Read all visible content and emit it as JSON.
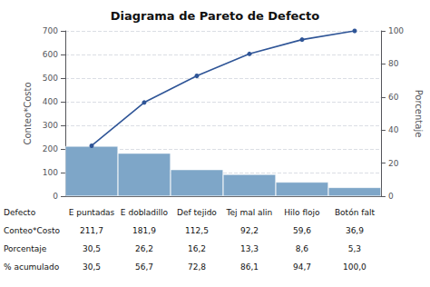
{
  "chart_data": {
    "type": "bar",
    "title": "Diagrama de Pareto de Defecto",
    "categories": [
      "E puntadas",
      "E dobladillo",
      "Def tejido",
      "Tej mal alin",
      "Hilo flojo",
      "Botón falt"
    ],
    "series": [
      {
        "name": "Conteo*Costo",
        "type": "bar",
        "color": "#7EA6C8",
        "values": [
          211.7,
          181.9,
          112.5,
          92.2,
          59.6,
          36.9
        ],
        "value_labels": [
          "211,7",
          "181,9",
          "112,5",
          "92,2",
          "59,6",
          "36,9"
        ]
      },
      {
        "name": "% acumulado",
        "type": "line",
        "axis": "y2",
        "color": "#2F5597",
        "marker": "circle",
        "values": [
          30.5,
          56.7,
          72.8,
          86.1,
          94.7,
          100.0
        ],
        "value_labels": [
          "30,5",
          "56,7",
          "72,8",
          "86,1",
          "94,7",
          "100,0"
        ]
      }
    ],
    "ylabel": "Conteo*Costo",
    "y2label": "Porcentaje",
    "ylim": [
      0,
      700
    ],
    "yticks": [
      0,
      100,
      200,
      300,
      400,
      500,
      600,
      700
    ],
    "y2lim": [
      0,
      100
    ],
    "y2ticks": [
      0,
      20,
      40,
      60,
      80,
      100
    ],
    "grid": true,
    "table": {
      "row_labels": [
        "Defecto",
        "Conteo*Costo",
        "Porcentaje",
        "% acumulado"
      ],
      "porcentaje": [
        "30,5",
        "26,2",
        "16,2",
        "13,3",
        "8,6",
        "5,3"
      ]
    }
  }
}
